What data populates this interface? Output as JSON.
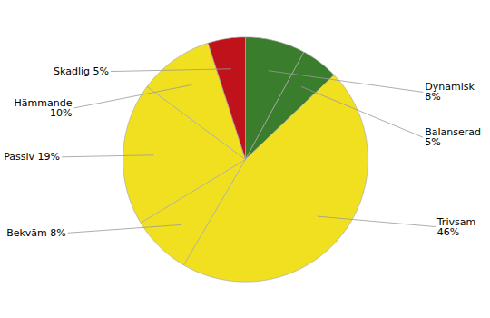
{
  "chart_data": {
    "type": "pie",
    "categories": [
      "Dynamisk",
      "Balanserad",
      "Trivsam",
      "Bekväm",
      "Passiv",
      "Hämmande",
      "Skadlig"
    ],
    "values": [
      8,
      5,
      46,
      8,
      19,
      10,
      5
    ],
    "value_labels": [
      "Dynamisk\n8%",
      "Balanserad\n5%",
      "Trivsam\n46%",
      "Bekväm 8%",
      "Passiv 19%",
      "Hämmande\n10%",
      "Skadlig 5%"
    ],
    "colors": [
      "#3a7d2c",
      "#3a7d2c",
      "#f0e020",
      "#f0e020",
      "#f0e020",
      "#f0e020",
      "#c0121a"
    ],
    "data_labels": true
  }
}
